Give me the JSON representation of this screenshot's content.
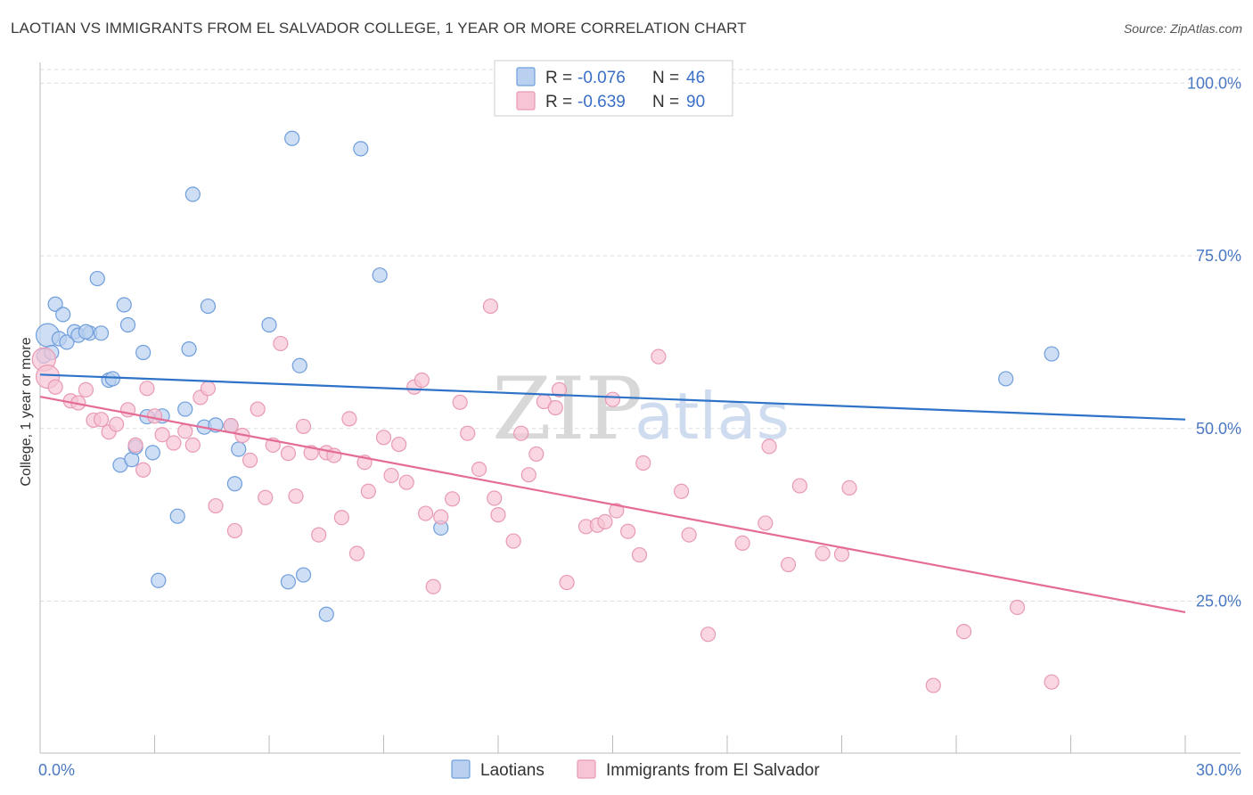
{
  "header": {
    "title": "LAOTIAN VS IMMIGRANTS FROM EL SALVADOR COLLEGE, 1 YEAR OR MORE CORRELATION CHART",
    "source": "Source: ZipAtlas.com"
  },
  "watermark": {
    "zip": "ZIP",
    "atlas": "atlas"
  },
  "legend": {
    "r_label": "R =",
    "n_label": "N =",
    "series": [
      {
        "r": "-0.076",
        "n": "46"
      },
      {
        "r": "-0.639",
        "n": "90"
      }
    ]
  },
  "colors": {
    "blue_fill": "#b9d0f0",
    "blue_stroke": "#6f9edc",
    "blue_line": "#2f73c8",
    "pink_fill": "#f6c4d4",
    "pink_stroke": "#e89ab4",
    "pink_line": "#e56c96",
    "grid": "#dddddd",
    "axis": "#bbbbbb"
  },
  "chart_data": {
    "type": "scatter",
    "title": "LAOTIAN VS IMMIGRANTS FROM EL SALVADOR COLLEGE, 1 YEAR OR MORE CORRELATION CHART",
    "xlabel": "",
    "ylabel": "College, 1 year or more",
    "xlim": [
      0,
      30
    ],
    "ylim": [
      3,
      103
    ],
    "x_tick_labels": [
      "0.0%",
      "30.0%"
    ],
    "y_ticks": [
      25,
      50,
      75,
      100
    ],
    "y_tick_labels": [
      "25.0%",
      "50.0%",
      "75.0%",
      "100.0%"
    ],
    "grid": true,
    "legend": "bottom-center",
    "series": [
      {
        "name": "Laotians",
        "r": -0.076,
        "n": 46,
        "trend": {
          "x": [
            0,
            30
          ],
          "y": [
            57.8,
            51.3
          ]
        },
        "points": [
          [
            0.2,
            63.5
          ],
          [
            0.4,
            68
          ],
          [
            0.5,
            63
          ],
          [
            0.6,
            66.5
          ],
          [
            0.7,
            62.5
          ],
          [
            0.9,
            64
          ],
          [
            1.0,
            63.5
          ],
          [
            1.3,
            63.8
          ],
          [
            1.5,
            71.7
          ],
          [
            1.8,
            57
          ],
          [
            1.9,
            57.2
          ],
          [
            2.1,
            44.7
          ],
          [
            2.2,
            67.9
          ],
          [
            2.3,
            65
          ],
          [
            2.4,
            45.5
          ],
          [
            2.5,
            47.3
          ],
          [
            2.7,
            61
          ],
          [
            2.8,
            51.7
          ],
          [
            2.95,
            46.5
          ],
          [
            3.1,
            28
          ],
          [
            3.2,
            51.8
          ],
          [
            3.6,
            37.3
          ],
          [
            3.8,
            52.8
          ],
          [
            3.9,
            61.5
          ],
          [
            4.0,
            83.9
          ],
          [
            4.3,
            50.2
          ],
          [
            4.4,
            67.7
          ],
          [
            4.6,
            50.5
          ],
          [
            5.0,
            50.4
          ],
          [
            5.1,
            42
          ],
          [
            5.2,
            47
          ],
          [
            6.0,
            65
          ],
          [
            6.5,
            27.8
          ],
          [
            6.6,
            92
          ],
          [
            6.8,
            59.1
          ],
          [
            6.9,
            28.8
          ],
          [
            7.5,
            23.1
          ],
          [
            8.4,
            90.5
          ],
          [
            8.9,
            72.2
          ],
          [
            10.5,
            35.6
          ],
          [
            25.3,
            57.2
          ],
          [
            26.5,
            60.8
          ],
          [
            0.1,
            60.5
          ],
          [
            0.3,
            61
          ],
          [
            1.2,
            64
          ],
          [
            1.6,
            63.8
          ]
        ]
      },
      {
        "name": "Immigrants from El Salvador",
        "r": -0.639,
        "n": 90,
        "trend": {
          "x": [
            0,
            30
          ],
          "y": [
            54.6,
            23.4
          ]
        },
        "points": [
          [
            0.1,
            60
          ],
          [
            0.2,
            57.5
          ],
          [
            0.4,
            56
          ],
          [
            0.8,
            54
          ],
          [
            1.0,
            53.7
          ],
          [
            1.2,
            55.6
          ],
          [
            1.4,
            51.2
          ],
          [
            1.6,
            51.3
          ],
          [
            1.8,
            49.5
          ],
          [
            2.0,
            50.6
          ],
          [
            2.3,
            52.7
          ],
          [
            2.5,
            47.6
          ],
          [
            2.7,
            44
          ],
          [
            2.8,
            55.8
          ],
          [
            3.0,
            51.8
          ],
          [
            3.2,
            49.1
          ],
          [
            3.5,
            47.9
          ],
          [
            3.8,
            49.6
          ],
          [
            4.0,
            47.6
          ],
          [
            4.2,
            54.5
          ],
          [
            4.4,
            55.8
          ],
          [
            4.6,
            38.8
          ],
          [
            5.0,
            50.4
          ],
          [
            5.1,
            35.2
          ],
          [
            5.3,
            49
          ],
          [
            5.5,
            45.4
          ],
          [
            5.7,
            52.8
          ],
          [
            5.9,
            40
          ],
          [
            6.1,
            47.6
          ],
          [
            6.3,
            62.3
          ],
          [
            6.5,
            46.4
          ],
          [
            6.7,
            40.2
          ],
          [
            6.9,
            50.3
          ],
          [
            7.1,
            46.5
          ],
          [
            7.3,
            34.6
          ],
          [
            7.5,
            46.5
          ],
          [
            7.7,
            46.1
          ],
          [
            7.9,
            37.1
          ],
          [
            8.1,
            51.4
          ],
          [
            8.3,
            31.9
          ],
          [
            8.5,
            45.1
          ],
          [
            8.6,
            40.9
          ],
          [
            9.0,
            48.7
          ],
          [
            9.2,
            43.2
          ],
          [
            9.4,
            47.7
          ],
          [
            9.6,
            42.2
          ],
          [
            9.8,
            56
          ],
          [
            10.0,
            57
          ],
          [
            10.1,
            37.7
          ],
          [
            10.3,
            27.1
          ],
          [
            10.5,
            37.2
          ],
          [
            10.8,
            39.8
          ],
          [
            11.0,
            53.8
          ],
          [
            11.2,
            49.3
          ],
          [
            11.5,
            44.1
          ],
          [
            11.9,
            39.9
          ],
          [
            11.8,
            67.7
          ],
          [
            12.0,
            37.5
          ],
          [
            12.4,
            33.7
          ],
          [
            12.6,
            49.3
          ],
          [
            12.8,
            43.3
          ],
          [
            13.0,
            46.3
          ],
          [
            13.2,
            53.9
          ],
          [
            13.5,
            53
          ],
          [
            13.6,
            55.6
          ],
          [
            13.8,
            27.7
          ],
          [
            14.3,
            35.8
          ],
          [
            14.6,
            36
          ],
          [
            14.8,
            36.5
          ],
          [
            15.0,
            54.2
          ],
          [
            15.1,
            38.1
          ],
          [
            15.4,
            35.1
          ],
          [
            15.7,
            31.7
          ],
          [
            15.8,
            45
          ],
          [
            16.2,
            60.4
          ],
          [
            16.8,
            40.9
          ],
          [
            17.0,
            34.6
          ],
          [
            17.5,
            20.2
          ],
          [
            18.4,
            33.4
          ],
          [
            19.0,
            36.3
          ],
          [
            19.1,
            47.4
          ],
          [
            19.6,
            30.3
          ],
          [
            19.9,
            41.7
          ],
          [
            20.5,
            31.9
          ],
          [
            21.0,
            31.8
          ],
          [
            21.2,
            41.4
          ],
          [
            23.4,
            12.8
          ],
          [
            24.2,
            20.6
          ],
          [
            25.6,
            24.1
          ],
          [
            26.5,
            13.3
          ]
        ]
      }
    ]
  }
}
